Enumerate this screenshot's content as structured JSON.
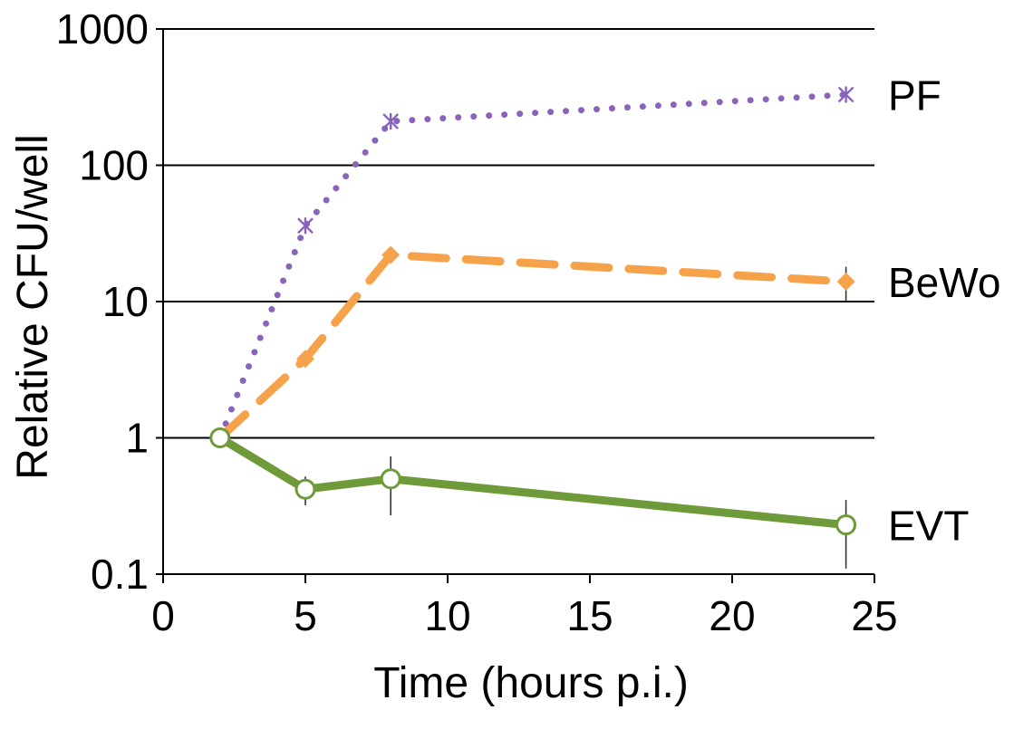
{
  "chart_data": {
    "type": "line",
    "title": "",
    "xlabel": "Time (hours p.i.)",
    "ylabel": "Relative CFU/well",
    "xlim": [
      0,
      25
    ],
    "ylim": [
      0.1,
      1000
    ],
    "y_scale": "log",
    "x_ticks": [
      0,
      5,
      10,
      15,
      20,
      25
    ],
    "x_tick_labels": [
      "0",
      "5",
      "10",
      "15",
      "20",
      "25"
    ],
    "y_ticks": [
      0.1,
      1,
      10,
      100,
      1000
    ],
    "y_tick_labels": [
      "0.1",
      "1",
      "10",
      "100",
      "1000"
    ],
    "grid": "horizontal",
    "legend": "inline labels at right end of lines",
    "series": [
      {
        "name": "PF",
        "color": "#8a64b8",
        "line_style": "dotted",
        "marker": "asterisk",
        "x": [
          2,
          5,
          8,
          24
        ],
        "y": [
          1,
          36,
          210,
          330
        ],
        "error": [
          0,
          4,
          20,
          25
        ]
      },
      {
        "name": "BeWo",
        "color": "#f5a24a",
        "line_style": "dashed",
        "marker": "diamond",
        "x": [
          2,
          5,
          8,
          24
        ],
        "y": [
          1,
          3.8,
          22,
          14
        ],
        "error": [
          0,
          0.5,
          2,
          4
        ]
      },
      {
        "name": "EVT",
        "color": "#6f9a3a",
        "line_style": "solid",
        "marker": "open-circle",
        "x": [
          2,
          5,
          8,
          24
        ],
        "y": [
          1,
          0.42,
          0.5,
          0.23
        ],
        "error": [
          0.08,
          0.1,
          0.23,
          0.12
        ]
      }
    ]
  }
}
